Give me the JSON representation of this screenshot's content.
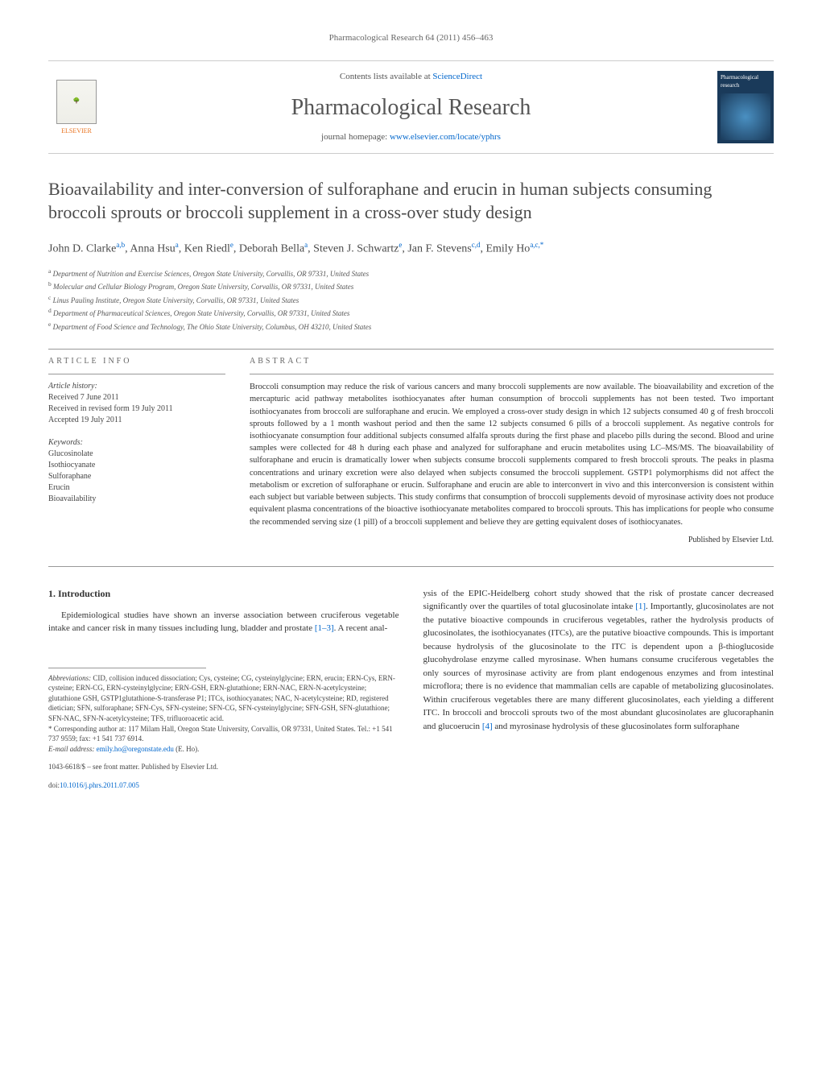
{
  "header": {
    "citation": "Pharmacological Research 64 (2011) 456–463"
  },
  "banner": {
    "contents_prefix": "Contents lists available at ",
    "contents_link": "ScienceDirect",
    "journal_name": "Pharmacological Research",
    "homepage_prefix": "journal homepage: ",
    "homepage_link": "www.elsevier.com/locate/yphrs",
    "elsevier_label": "ELSEVIER",
    "cover_text": "Pharmacological research"
  },
  "title": "Bioavailability and inter-conversion of sulforaphane and erucin in human subjects consuming broccoli sprouts or broccoli supplement in a cross-over study design",
  "authors_html": "John D. Clarke<sup>a,b</sup>, Anna Hsu<sup>a</sup>, Ken Riedl<sup>e</sup>, Deborah Bella<sup>a</sup>, Steven J. Schwartz<sup>e</sup>, Jan F. Stevens<sup>c,d</sup>, Emily Ho<sup>a,c,*</sup>",
  "affiliations": [
    "a Department of Nutrition and Exercise Sciences, Oregon State University, Corvallis, OR 97331, United States",
    "b Molecular and Cellular Biology Program, Oregon State University, Corvallis, OR 97331, United States",
    "c Linus Pauling Institute, Oregon State University, Corvallis, OR 97331, United States",
    "d Department of Pharmaceutical Sciences, Oregon State University, Corvallis, OR 97331, United States",
    "e Department of Food Science and Technology, The Ohio State University, Columbus, OH 43210, United States"
  ],
  "info": {
    "label": "ARTICLE INFO",
    "history_label": "Article history:",
    "history": [
      "Received 7 June 2011",
      "Received in revised form 19 July 2011",
      "Accepted 19 July 2011"
    ],
    "keywords_label": "Keywords:",
    "keywords": [
      "Glucosinolate",
      "Isothiocyanate",
      "Sulforaphane",
      "Erucin",
      "Bioavailability"
    ]
  },
  "abstract": {
    "label": "ABSTRACT",
    "text": "Broccoli consumption may reduce the risk of various cancers and many broccoli supplements are now available. The bioavailability and excretion of the mercapturic acid pathway metabolites isothiocyanates after human consumption of broccoli supplements has not been tested. Two important isothiocyanates from broccoli are sulforaphane and erucin. We employed a cross-over study design in which 12 subjects consumed 40 g of fresh broccoli sprouts followed by a 1 month washout period and then the same 12 subjects consumed 6 pills of a broccoli supplement. As negative controls for isothiocyanate consumption four additional subjects consumed alfalfa sprouts during the first phase and placebo pills during the second. Blood and urine samples were collected for 48 h during each phase and analyzed for sulforaphane and erucin metabolites using LC–MS/MS. The bioavailability of sulforaphane and erucin is dramatically lower when subjects consume broccoli supplements compared to fresh broccoli sprouts. The peaks in plasma concentrations and urinary excretion were also delayed when subjects consumed the broccoli supplement. GSTP1 polymorphisms did not affect the metabolism or excretion of sulforaphane or erucin. Sulforaphane and erucin are able to interconvert in vivo and this interconversion is consistent within each subject but variable between subjects. This study confirms that consumption of broccoli supplements devoid of myrosinase activity does not produce equivalent plasma concentrations of the bioactive isothiocyanate metabolites compared to broccoli sprouts. This has implications for people who consume the recommended serving size (1 pill) of a broccoli supplement and believe they are getting equivalent doses of isothiocyanates.",
    "publisher": "Published by Elsevier Ltd."
  },
  "body": {
    "intro_heading": "1. Introduction",
    "col1_text": "Epidemiological studies have shown an inverse association between cruciferous vegetable intake and cancer risk in many tissues including lung, bladder and prostate [1–3]. A recent anal-",
    "col1_link": "[1–3]",
    "col2_text": "ysis of the EPIC-Heidelberg cohort study showed that the risk of prostate cancer decreased significantly over the quartiles of total glucosinolate intake [1]. Importantly, glucosinolates are not the putative bioactive compounds in cruciferous vegetables, rather the hydrolysis products of glucosinolates, the isothiocyanates (ITCs), are the putative bioactive compounds. This is important because hydrolysis of the glucosinolate to the ITC is dependent upon a β-thioglucoside glucohydrolase enzyme called myrosinase. When humans consume cruciferous vegetables the only sources of myrosinase activity are from plant endogenous enzymes and from intestinal microflora; there is no evidence that mammalian cells are capable of metabolizing glucosinolates. Within cruciferous vegetables there are many different glucosinolates, each yielding a different ITC. In broccoli and broccoli sprouts two of the most abundant glucosinolates are glucoraphanin and glucoerucin [4] and myrosinase hydrolysis of these glucosinolates form sulforaphane",
    "col2_link1": "[1]",
    "col2_link2": "[4]"
  },
  "footnotes": {
    "abbrev_label": "Abbreviations:",
    "abbrev": " CID, collision induced dissociation; Cys, cysteine; CG, cysteinylglycine; ERN, erucin; ERN-Cys, ERN-cysteine; ERN-CG, ERN-cysteinylglycine; ERN-GSH, ERN-glutathione; ERN-NAC, ERN-N-acetylcysteine; glutathione GSH, GSTP1glutathione-S-transferase P1; ITCs, isothiocyanates; NAC, N-acetylcysteine; RD, registered dietician; SFN, sulforaphane; SFN-Cys, SFN-cysteine; SFN-CG, SFN-cysteinylglycine; SFN-GSH, SFN-glutathione; SFN-NAC, SFN-N-acetylcysteine; TFS, trifluoroacetic acid.",
    "corr_label": "* Corresponding author at: ",
    "corr": "117 Milam Hall, Oregon State University, Corvallis, OR 97331, United States. Tel.: +1 541 737 9559; fax: +1 541 737 6914.",
    "email_label": "E-mail address: ",
    "email": "emily.ho@oregonstate.edu",
    "email_suffix": " (E. Ho).",
    "copyright": "1043-6618/$ – see front matter. Published by Elsevier Ltd.",
    "doi_prefix": "doi:",
    "doi": "10.1016/j.phrs.2011.07.005"
  }
}
